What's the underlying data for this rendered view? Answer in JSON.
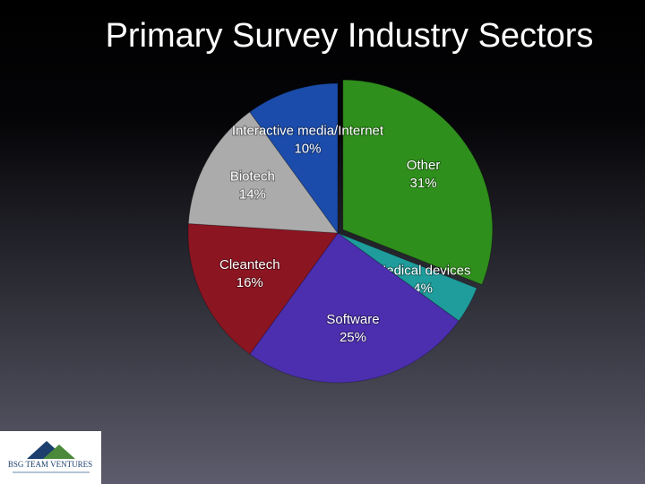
{
  "chart_data": {
    "type": "pie",
    "title": "Primary Survey Industry Sectors",
    "categories": [
      "Other",
      "Medical devices",
      "Software",
      "Cleantech",
      "Biotech",
      "Interactive media/Internet"
    ],
    "values": [
      31,
      4,
      25,
      16,
      14,
      10
    ],
    "value_labels": [
      "31%",
      "4%",
      "25%",
      "16%",
      "14%",
      "10%"
    ],
    "colors": [
      "#2f8f1c",
      "#1f9c9c",
      "#4b2fae",
      "#8c1522",
      "#ababab",
      "#1b4cab"
    ]
  },
  "logo_text": "BSG TEAM VENTURES"
}
